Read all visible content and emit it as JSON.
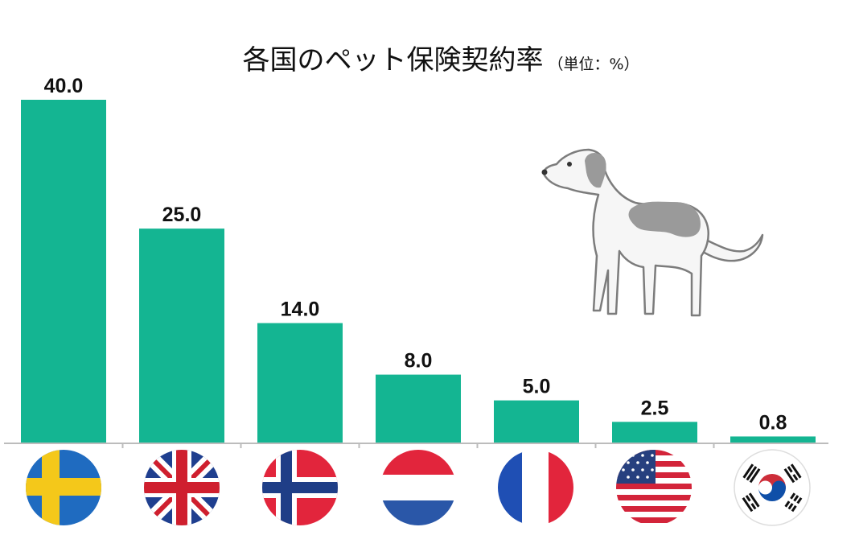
{
  "chart_data": {
    "type": "bar",
    "title": "各国のペット保険契約率",
    "subtitle": "（単位：%）",
    "categories": [
      "sweden-flag-icon",
      "uk-flag-icon",
      "norway-flag-icon",
      "netherlands-flag-icon",
      "france-flag-icon",
      "usa-flag-icon",
      "south-korea-flag-icon"
    ],
    "values": [
      40.0,
      25.0,
      14.0,
      8.0,
      5.0,
      2.5,
      0.8
    ],
    "value_labels": [
      "40.0",
      "25.0",
      "14.0",
      "8.0",
      "5.0",
      "2.5",
      "0.8"
    ],
    "ylim": [
      0,
      40
    ],
    "grid": false,
    "xlabel": "",
    "ylabel": ""
  },
  "colors": {
    "bar": "#14b592",
    "axis": "#bcbcbc",
    "dog_body": "#f6f6f6",
    "dog_patch": "#9a9a9a",
    "dog_outline": "#7c7c7c"
  },
  "decorations": {
    "illustration": "dog-icon"
  }
}
